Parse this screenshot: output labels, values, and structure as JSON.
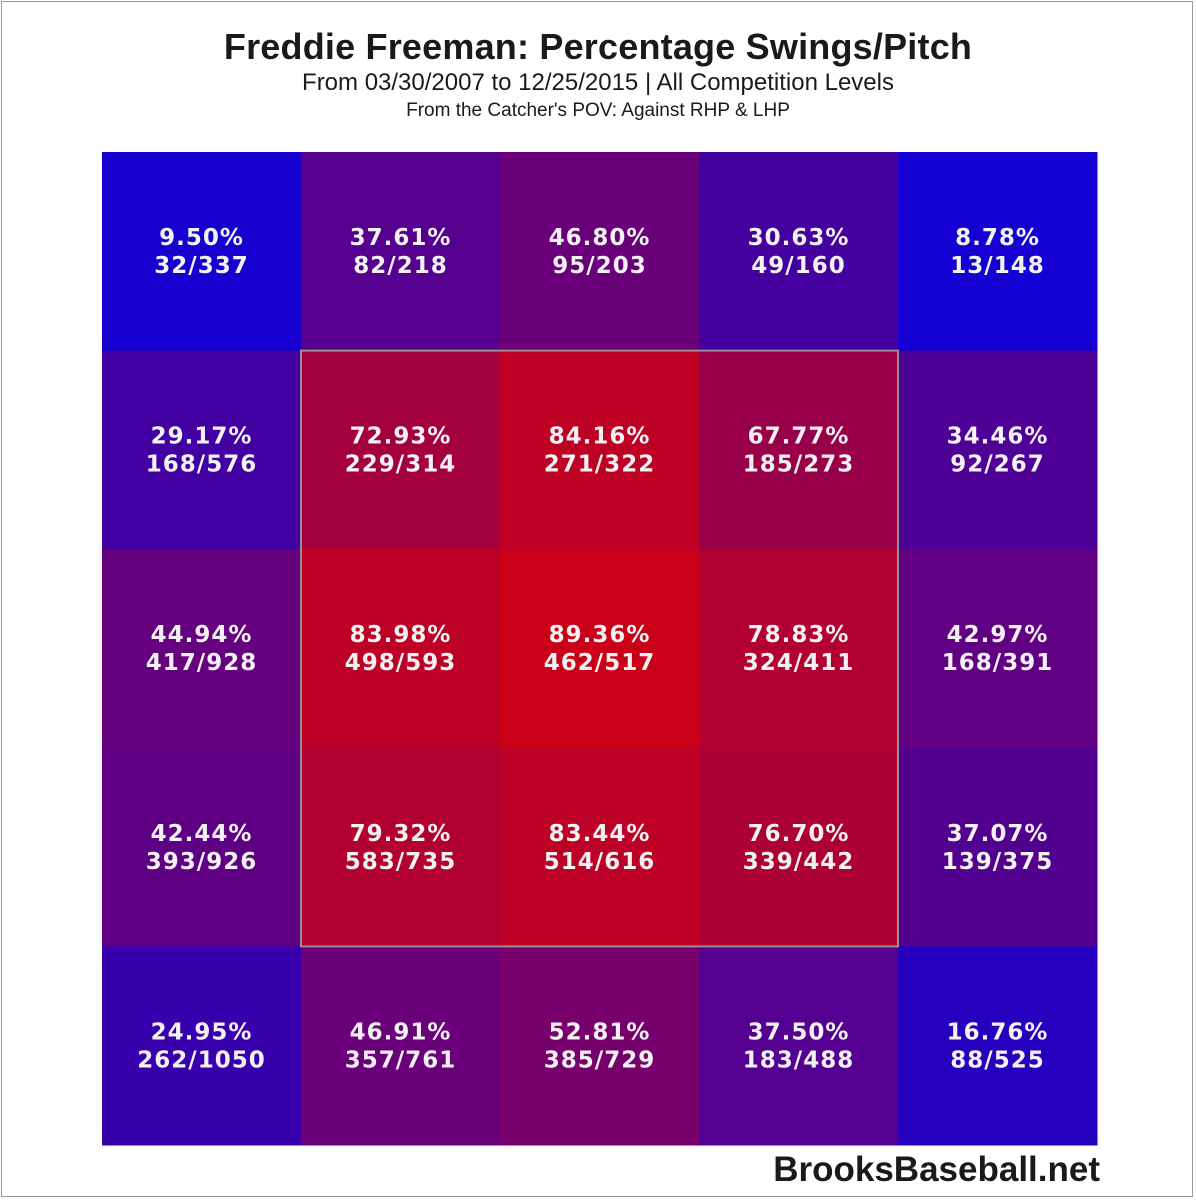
{
  "chart_data": {
    "type": "heatmap",
    "title": "Freddie Freeman: Percentage Swings/Pitch",
    "subtitle": "From 03/30/2007 to 12/25/2015 | All Competition Levels",
    "subtitle2": "From the Catcher's POV:   Against RHP & LHP",
    "rows": 5,
    "cols": 5,
    "strike_zone": {
      "row_start": 1,
      "row_end": 3,
      "col_start": 1,
      "col_end": 3
    },
    "cells": [
      [
        {
          "pct": "9.50%",
          "ratio": "32/337",
          "value": 9.5
        },
        {
          "pct": "37.61%",
          "ratio": "82/218",
          "value": 37.61
        },
        {
          "pct": "46.80%",
          "ratio": "95/203",
          "value": 46.8
        },
        {
          "pct": "30.63%",
          "ratio": "49/160",
          "value": 30.63
        },
        {
          "pct": "8.78%",
          "ratio": "13/148",
          "value": 8.78
        }
      ],
      [
        {
          "pct": "29.17%",
          "ratio": "168/576",
          "value": 29.17
        },
        {
          "pct": "72.93%",
          "ratio": "229/314",
          "value": 72.93
        },
        {
          "pct": "84.16%",
          "ratio": "271/322",
          "value": 84.16
        },
        {
          "pct": "67.77%",
          "ratio": "185/273",
          "value": 67.77
        },
        {
          "pct": "34.46%",
          "ratio": "92/267",
          "value": 34.46
        }
      ],
      [
        {
          "pct": "44.94%",
          "ratio": "417/928",
          "value": 44.94
        },
        {
          "pct": "83.98%",
          "ratio": "498/593",
          "value": 83.98
        },
        {
          "pct": "89.36%",
          "ratio": "462/517",
          "value": 89.36
        },
        {
          "pct": "78.83%",
          "ratio": "324/411",
          "value": 78.83
        },
        {
          "pct": "42.97%",
          "ratio": "168/391",
          "value": 42.97
        }
      ],
      [
        {
          "pct": "42.44%",
          "ratio": "393/926",
          "value": 42.44
        },
        {
          "pct": "79.32%",
          "ratio": "583/735",
          "value": 79.32
        },
        {
          "pct": "83.44%",
          "ratio": "514/616",
          "value": 83.44
        },
        {
          "pct": "76.70%",
          "ratio": "339/442",
          "value": 76.7
        },
        {
          "pct": "37.07%",
          "ratio": "139/375",
          "value": 37.07
        }
      ],
      [
        {
          "pct": "24.95%",
          "ratio": "262/1050",
          "value": 24.95
        },
        {
          "pct": "46.91%",
          "ratio": "357/761",
          "value": 46.91
        },
        {
          "pct": "52.81%",
          "ratio": "385/729",
          "value": 52.81
        },
        {
          "pct": "37.50%",
          "ratio": "183/488",
          "value": 37.5
        },
        {
          "pct": "16.76%",
          "ratio": "88/525",
          "value": 16.76
        }
      ]
    ]
  },
  "watermark": "BrooksBaseball.net"
}
